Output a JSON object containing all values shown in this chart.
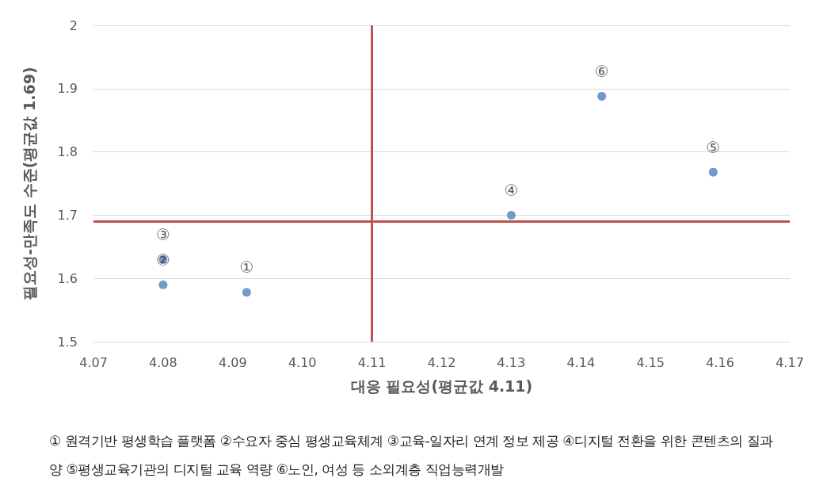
{
  "chart_data": {
    "type": "scatter",
    "xlabel": "대응 필요성(평균값 4.11)",
    "ylabel": "필요성-만족도 수준(평균값 1.69)",
    "series": [
      {
        "color": "#4f81bd",
        "x": [
          4.092,
          4.08,
          4.08,
          4.13,
          4.159,
          4.143
        ],
        "values": [
          1.578,
          1.59,
          1.63,
          1.7,
          1.768,
          1.888
        ],
        "value_labels": [
          "①",
          "②",
          "③",
          "④",
          "⑤",
          "⑥"
        ]
      }
    ],
    "xlim": [
      4.07,
      4.17
    ],
    "xticks": [
      4.07,
      4.08,
      4.09,
      {
        "value": 4.1,
        "label": "4.10"
      },
      4.11,
      4.12,
      4.13,
      4.14,
      4.15,
      4.16,
      4.17
    ],
    "ylim": [
      1.5,
      2
    ],
    "yticks": [
      1.5,
      1.6,
      1.7,
      1.8,
      1.9,
      2
    ],
    "grid": "y",
    "marker": "circle",
    "ref_lines": [
      {
        "axis": "x",
        "value": 4.11,
        "color": "#c0504d"
      },
      {
        "axis": "y",
        "value": 1.69,
        "color": "#c0504d"
      }
    ],
    "annotations": [
      "① 원격기반 평생학습 플랫폼 ②수요자 중심 평생교육체계 ③교육-일자리 연계 정보 제공 ④디지털 전환을 위한 콘텐츠의 질과 양 ⑤평생교육기관의 디지털 교육 역량 ⑥노인, 여성 등 소외계층 직업능력개발"
    ]
  }
}
